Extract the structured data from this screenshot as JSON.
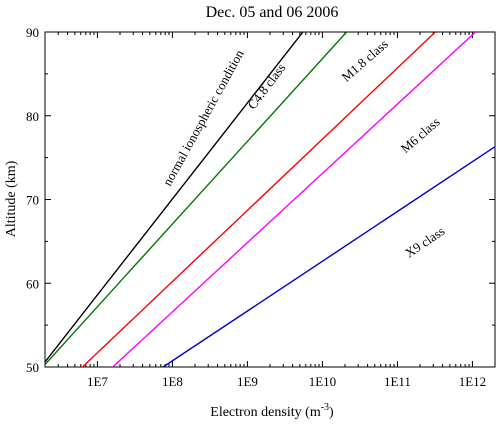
{
  "chart_data": {
    "type": "line",
    "title": "Dec. 05 and 06 2006",
    "xlabel": "Electron density",
    "xlabel_unit_base": "m",
    "xlabel_unit_exp": "-3",
    "ylabel": "Altitude (km)",
    "x_scale": "log",
    "xlim": [
      2000000,
      2000000000000
    ],
    "ylim": [
      50,
      90
    ],
    "x_ticks": [
      {
        "value": 10000000,
        "label": "1E7"
      },
      {
        "value": 100000000,
        "label": "1E8"
      },
      {
        "value": 1000000000,
        "label": "1E9"
      },
      {
        "value": 10000000000,
        "label": "1E10"
      },
      {
        "value": 100000000000,
        "label": "1E11"
      },
      {
        "value": 1000000000000,
        "label": "1E12"
      }
    ],
    "y_ticks": [
      50,
      60,
      70,
      80,
      90
    ],
    "grid": false,
    "legend": "none",
    "series": [
      {
        "name": "normal ionospheric condition",
        "color": "#000000",
        "x": [
          2000000,
          5500000000
        ],
        "y": [
          50.6,
          90
        ],
        "label_at": {
          "x": 290000000,
          "y": 79.5,
          "angle": -61
        }
      },
      {
        "name": "C4.8 class",
        "color": "#007800",
        "x": [
          2000000,
          21000000000
        ],
        "y": [
          50.3,
          90
        ],
        "label_at": {
          "x": 2000000000,
          "y": 83.2,
          "angle": -53
        }
      },
      {
        "name": "M1.8 class",
        "color": "#ff0000",
        "x": [
          6300000,
          320000000000
        ],
        "y": [
          50,
          90
        ],
        "label_at": {
          "x": 40000000000,
          "y": 86.2,
          "angle": -41
        }
      },
      {
        "name": "M6 class",
        "color": "#ff00ff",
        "x": [
          16000000,
          1100000000000
        ],
        "y": [
          50,
          90
        ],
        "label_at": {
          "x": 220000000000,
          "y": 77.3,
          "angle": -41
        }
      },
      {
        "name": "X9 class",
        "color": "#0000cc",
        "x": [
          75000000,
          2000000000000
        ],
        "y": [
          50,
          76.3
        ],
        "label_at": {
          "x": 250000000000,
          "y": 64.5,
          "angle": -34
        }
      }
    ]
  }
}
